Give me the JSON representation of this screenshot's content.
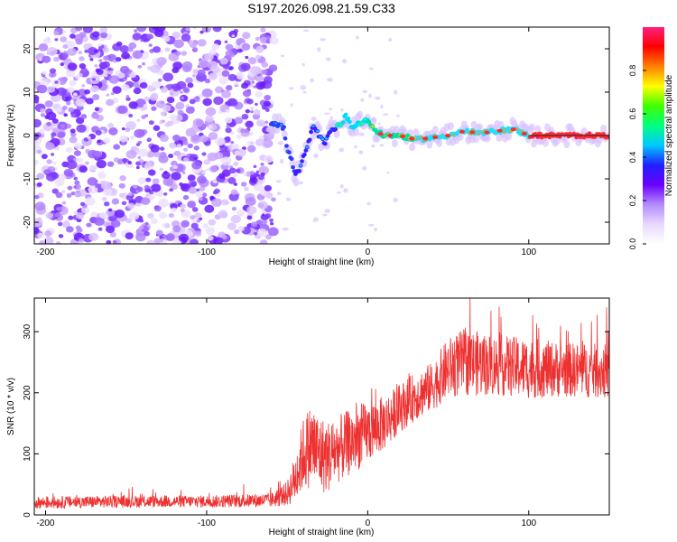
{
  "title": "S197.2026.098.21.59.C33",
  "chart_data": [
    {
      "type": "heatmap",
      "xlabel": "Height of straight line (km)",
      "ylabel": "Frequency (Hz)",
      "xlim": [
        -207,
        150
      ],
      "ylim": [
        -25,
        25
      ],
      "xticks": [
        -200,
        -100,
        0,
        100
      ],
      "yticks": [
        -20,
        -10,
        0,
        10,
        20
      ],
      "grid": false,
      "colorbar": {
        "label": "Normalized spectral amplitude",
        "range": [
          0.0,
          1.0
        ],
        "ticks": [
          "0.0",
          "0.2",
          "0.4",
          "0.6",
          "0.8"
        ],
        "colors": [
          "#ffffff",
          "#e8d8ff",
          "#b48cff",
          "#6a00ff",
          "#2020ff",
          "#00c8ff",
          "#00ff80",
          "#40ff00",
          "#ffff00",
          "#ff8000",
          "#ff0000",
          "#ff2080"
        ]
      },
      "noise_region_x": [
        -207,
        -58
      ],
      "ridge": [
        {
          "x": -60,
          "y": 3
        },
        {
          "x": -55,
          "y": 2.5
        },
        {
          "x": -52,
          "y": 1.5
        },
        {
          "x": -50,
          "y": -3
        },
        {
          "x": -47,
          "y": -6
        },
        {
          "x": -45,
          "y": -9
        },
        {
          "x": -42,
          "y": -8
        },
        {
          "x": -40,
          "y": -5
        },
        {
          "x": -37,
          "y": -2
        },
        {
          "x": -34,
          "y": 2
        },
        {
          "x": -30,
          "y": 0
        },
        {
          "x": -27,
          "y": -2
        },
        {
          "x": -23,
          "y": 1
        },
        {
          "x": -18,
          "y": 2.5
        },
        {
          "x": -15,
          "y": 3
        },
        {
          "x": -14,
          "y": 5
        },
        {
          "x": -10,
          "y": 2
        },
        {
          "x": -5,
          "y": 3
        },
        {
          "x": 0,
          "y": 3.5
        },
        {
          "x": 5,
          "y": 1
        },
        {
          "x": 10,
          "y": 0
        },
        {
          "x": 20,
          "y": 0
        },
        {
          "x": 30,
          "y": -1
        },
        {
          "x": 40,
          "y": -0.5
        },
        {
          "x": 50,
          "y": 0
        },
        {
          "x": 60,
          "y": 1
        },
        {
          "x": 70,
          "y": 0.5
        },
        {
          "x": 80,
          "y": 1
        },
        {
          "x": 90,
          "y": 1.5
        },
        {
          "x": 100,
          "y": 0
        },
        {
          "x": 120,
          "y": 0
        },
        {
          "x": 150,
          "y": 0
        }
      ]
    },
    {
      "type": "line",
      "xlabel": "Height of straight line (km)",
      "ylabel": "SNR (10 * v/v)",
      "xlim": [
        -207,
        150
      ],
      "ylim": [
        0,
        355
      ],
      "xticks": [
        -200,
        -100,
        0,
        100
      ],
      "yticks": [
        0,
        100,
        200,
        300
      ],
      "grid": false,
      "series": [
        {
          "name": "SNR",
          "color": "#ee3030",
          "envelope": [
            {
              "x": -207,
              "mean": 20,
              "spread": 10
            },
            {
              "x": -150,
              "mean": 22,
              "spread": 10
            },
            {
              "x": -100,
              "mean": 22,
              "spread": 10
            },
            {
              "x": -60,
              "mean": 24,
              "spread": 12
            },
            {
              "x": -50,
              "mean": 35,
              "spread": 20
            },
            {
              "x": -45,
              "mean": 60,
              "spread": 40
            },
            {
              "x": -40,
              "mean": 100,
              "spread": 60
            },
            {
              "x": -35,
              "mean": 115,
              "spread": 70
            },
            {
              "x": -30,
              "mean": 100,
              "spread": 65
            },
            {
              "x": -25,
              "mean": 95,
              "spread": 60
            },
            {
              "x": -20,
              "mean": 105,
              "spread": 55
            },
            {
              "x": -10,
              "mean": 120,
              "spread": 55
            },
            {
              "x": 0,
              "mean": 135,
              "spread": 50
            },
            {
              "x": 10,
              "mean": 150,
              "spread": 45
            },
            {
              "x": 20,
              "mean": 175,
              "spread": 40
            },
            {
              "x": 30,
              "mean": 195,
              "spread": 40
            },
            {
              "x": 40,
              "mean": 210,
              "spread": 40
            },
            {
              "x": 50,
              "mean": 240,
              "spread": 50
            },
            {
              "x": 60,
              "mean": 250,
              "spread": 55
            },
            {
              "x": 80,
              "mean": 245,
              "spread": 50
            },
            {
              "x": 100,
              "mean": 240,
              "spread": 50
            },
            {
              "x": 120,
              "mean": 238,
              "spread": 45
            },
            {
              "x": 150,
              "mean": 235,
              "spread": 45
            }
          ]
        }
      ]
    }
  ]
}
